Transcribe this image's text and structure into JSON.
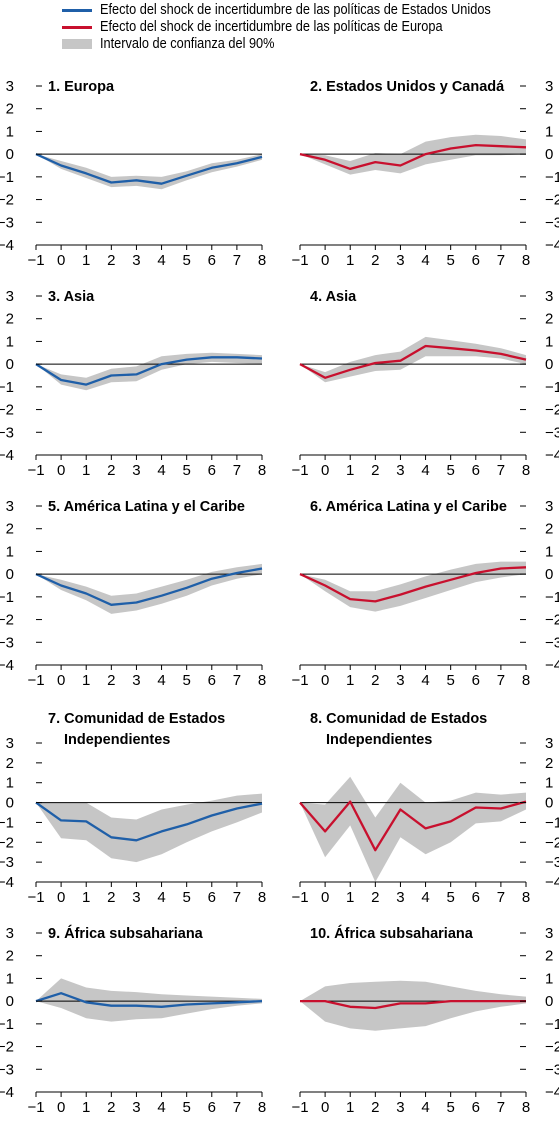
{
  "legend": {
    "items": [
      {
        "label": "Efecto del shock de incertidumbre de las políticas de Estados Unidos",
        "color": "#1f5fa8",
        "kind": "line"
      },
      {
        "label": "Efecto del shock de incertidumbre de las políticas de Europa",
        "color": "#c8102e",
        "kind": "line"
      },
      {
        "label": "Intervalo de confianza del 90%",
        "color": "#c6c6c6",
        "kind": "band"
      }
    ]
  },
  "chart_data": [
    {
      "type": "line",
      "title": [
        "1. Europa"
      ],
      "x": [
        -1,
        0,
        1,
        2,
        3,
        4,
        5,
        6,
        7,
        8
      ],
      "ylim": [
        -4,
        3
      ],
      "series": [
        {
          "color": "#1f5fa8",
          "values": [
            0,
            -0.5,
            -0.85,
            -1.25,
            -1.15,
            -1.3,
            -0.95,
            -0.6,
            -0.4,
            -0.12
          ]
        }
      ],
      "band_low": [
        0,
        -0.65,
        -1.05,
        -1.45,
        -1.4,
        -1.55,
        -1.15,
        -0.8,
        -0.55,
        -0.25
      ],
      "band_high": [
        0,
        -0.3,
        -0.6,
        -1.0,
        -0.95,
        -1.0,
        -0.75,
        -0.4,
        -0.25,
        0
      ],
      "yaxis": "left"
    },
    {
      "type": "line",
      "title": [
        "2. Estados Unidos y Canadá"
      ],
      "x": [
        -1,
        0,
        1,
        2,
        3,
        4,
        5,
        6,
        7,
        8
      ],
      "ylim": [
        -4,
        3
      ],
      "series": [
        {
          "color": "#c8102e",
          "values": [
            0,
            -0.25,
            -0.65,
            -0.35,
            -0.5,
            0.0,
            0.25,
            0.4,
            0.35,
            0.3
          ]
        }
      ],
      "band_low": [
        0,
        -0.45,
        -0.9,
        -0.7,
        -0.85,
        -0.45,
        -0.25,
        -0.05,
        -0.05,
        0
      ],
      "band_high": [
        0,
        -0.05,
        -0.3,
        0.05,
        0.0,
        0.55,
        0.75,
        0.85,
        0.8,
        0.65
      ],
      "yaxis": "right"
    },
    {
      "type": "line",
      "title": [
        "3. Asia"
      ],
      "x": [
        -1,
        0,
        1,
        2,
        3,
        4,
        5,
        6,
        7,
        8
      ],
      "ylim": [
        -4,
        3
      ],
      "series": [
        {
          "color": "#1f5fa8",
          "values": [
            0,
            -0.7,
            -0.9,
            -0.5,
            -0.45,
            0.0,
            0.2,
            0.3,
            0.3,
            0.25
          ]
        }
      ],
      "band_low": [
        0,
        -0.9,
        -1.15,
        -0.8,
        -0.75,
        -0.25,
        0.0,
        0.1,
        0.05,
        0
      ],
      "band_high": [
        0,
        -0.45,
        -0.6,
        -0.2,
        -0.1,
        0.35,
        0.45,
        0.5,
        0.45,
        0.4
      ],
      "yaxis": "left"
    },
    {
      "type": "line",
      "title": [
        "4. Asia"
      ],
      "x": [
        -1,
        0,
        1,
        2,
        3,
        4,
        5,
        6,
        7,
        8
      ],
      "ylim": [
        -4,
        3
      ],
      "series": [
        {
          "color": "#c8102e",
          "values": [
            0,
            -0.6,
            -0.25,
            0.05,
            0.15,
            0.8,
            0.7,
            0.6,
            0.45,
            0.2
          ]
        }
      ],
      "band_low": [
        0,
        -0.8,
        -0.55,
        -0.3,
        -0.25,
        0.35,
        0.35,
        0.35,
        0.25,
        0
      ],
      "band_high": [
        0,
        -0.35,
        0.1,
        0.4,
        0.55,
        1.2,
        1.05,
        0.9,
        0.7,
        0.4
      ],
      "yaxis": "right"
    },
    {
      "type": "line",
      "title": [
        "5. América Latina y el Caribe"
      ],
      "x": [
        -1,
        0,
        1,
        2,
        3,
        4,
        5,
        6,
        7,
        8
      ],
      "ylim": [
        -4,
        3
      ],
      "series": [
        {
          "color": "#1f5fa8",
          "values": [
            0,
            -0.5,
            -0.85,
            -1.35,
            -1.25,
            -0.95,
            -0.6,
            -0.2,
            0.05,
            0.25
          ]
        }
      ],
      "band_low": [
        0,
        -0.7,
        -1.15,
        -1.75,
        -1.6,
        -1.3,
        -0.95,
        -0.5,
        -0.2,
        0
      ],
      "band_high": [
        0,
        -0.25,
        -0.55,
        -0.95,
        -0.85,
        -0.55,
        -0.25,
        0.1,
        0.3,
        0.45
      ],
      "yaxis": "left"
    },
    {
      "type": "line",
      "title": [
        "6. América Latina y el Caribe"
      ],
      "x": [
        -1,
        0,
        1,
        2,
        3,
        4,
        5,
        6,
        7,
        8
      ],
      "ylim": [
        -4,
        3
      ],
      "series": [
        {
          "color": "#c8102e",
          "values": [
            0,
            -0.5,
            -1.1,
            -1.2,
            -0.9,
            -0.55,
            -0.25,
            0.05,
            0.25,
            0.3
          ]
        }
      ],
      "band_low": [
        0,
        -0.75,
        -1.45,
        -1.65,
        -1.4,
        -1.05,
        -0.7,
        -0.35,
        -0.15,
        0
      ],
      "band_high": [
        0,
        -0.25,
        -0.75,
        -0.75,
        -0.45,
        -0.1,
        0.2,
        0.45,
        0.55,
        0.55
      ],
      "yaxis": "right"
    },
    {
      "type": "line",
      "title": [
        "7. Comunidad de Estados",
        "Independientes"
      ],
      "x": [
        -1,
        0,
        1,
        2,
        3,
        4,
        5,
        6,
        7,
        8
      ],
      "ylim": [
        -4,
        3
      ],
      "series": [
        {
          "color": "#1f5fa8",
          "values": [
            0,
            -0.9,
            -0.95,
            -1.75,
            -1.9,
            -1.45,
            -1.1,
            -0.65,
            -0.3,
            -0.05
          ]
        }
      ],
      "band_low": [
        0,
        -1.8,
        -1.9,
        -2.8,
        -3.0,
        -2.6,
        -2.0,
        -1.45,
        -1.0,
        -0.5
      ],
      "band_high": [
        0,
        0,
        0,
        -0.75,
        -0.85,
        -0.35,
        -0.1,
        0.1,
        0.35,
        0.45
      ],
      "yaxis": "left"
    },
    {
      "type": "line",
      "title": [
        "8. Comunidad de Estados",
        "Independientes"
      ],
      "x": [
        -1,
        0,
        1,
        2,
        3,
        4,
        5,
        6,
        7,
        8
      ],
      "ylim": [
        -4,
        3
      ],
      "series": [
        {
          "color": "#c8102e",
          "values": [
            0,
            -1.45,
            0.05,
            -2.4,
            -0.35,
            -1.3,
            -0.95,
            -0.25,
            -0.3,
            0.05
          ]
        }
      ],
      "band_low": [
        0,
        -2.75,
        -1.15,
        -4.0,
        -1.75,
        -2.6,
        -2.0,
        -1.05,
        -0.95,
        -0.35
      ],
      "band_high": [
        0,
        -0.1,
        1.3,
        -0.75,
        1.0,
        0.0,
        0.1,
        0.5,
        0.4,
        0.5
      ],
      "yaxis": "right"
    },
    {
      "type": "line",
      "title": [
        "9. África subsahariana"
      ],
      "x": [
        -1,
        0,
        1,
        2,
        3,
        4,
        5,
        6,
        7,
        8
      ],
      "ylim": [
        -4,
        3
      ],
      "series": [
        {
          "color": "#1f5fa8",
          "values": [
            0,
            0.35,
            -0.05,
            -0.2,
            -0.2,
            -0.25,
            -0.15,
            -0.1,
            -0.05,
            0
          ]
        }
      ],
      "band_low": [
        0,
        -0.3,
        -0.75,
        -0.9,
        -0.8,
        -0.75,
        -0.55,
        -0.35,
        -0.2,
        -0.1
      ],
      "band_high": [
        0,
        1.0,
        0.6,
        0.45,
        0.4,
        0.3,
        0.25,
        0.2,
        0.15,
        0.1
      ],
      "yaxis": "left"
    },
    {
      "type": "line",
      "title": [
        "10. África subsahariana"
      ],
      "x": [
        -1,
        0,
        1,
        2,
        3,
        4,
        5,
        6,
        7,
        8
      ],
      "ylim": [
        -4,
        3
      ],
      "series": [
        {
          "color": "#c8102e",
          "values": [
            0,
            0,
            -0.25,
            -0.3,
            -0.1,
            -0.1,
            0,
            0,
            0,
            0
          ]
        }
      ],
      "band_low": [
        0,
        -0.9,
        -1.2,
        -1.3,
        -1.2,
        -1.1,
        -0.75,
        -0.45,
        -0.25,
        -0.1
      ],
      "band_high": [
        0,
        0.65,
        0.8,
        0.85,
        0.9,
        0.85,
        0.65,
        0.45,
        0.3,
        0.2
      ],
      "yaxis": "right"
    }
  ]
}
